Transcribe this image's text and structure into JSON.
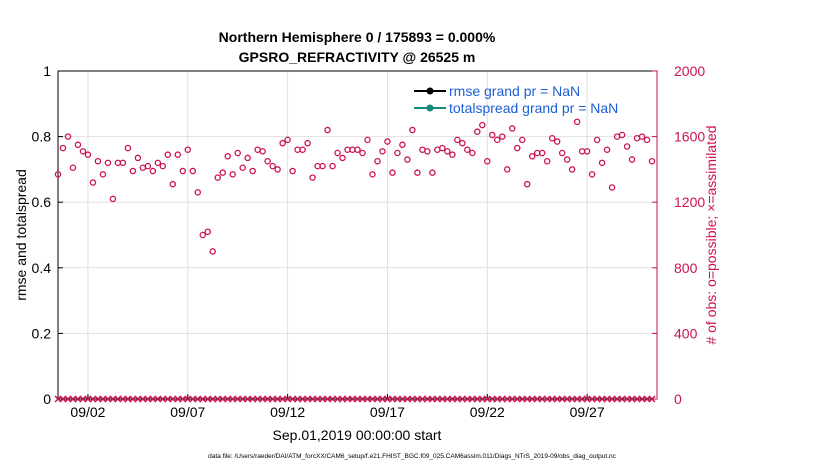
{
  "chart_data": {
    "type": "scatter",
    "title_line1": "Northern Hemisphere 0 / 175893 = 0.000%",
    "title_line2": "GPSRO_REFRACTIVITY @ 26525 m",
    "xlabel": "Sep.01,2019 00:00:00 start",
    "ylabel_left": "rmse and totalspread",
    "ylabel_right": "# of obs: o=possible; ×=assimilated",
    "footer": "data file: /Users/raeder/DAI/ATM_forcXX/CAM6_setup/f.e21.FHIST_BGC.f09_025.CAM6assim.011/Diags_NTrS_2019-09/obs_diag_output.nc",
    "x_range": [
      0.5,
      30.5
    ],
    "ylim_left": [
      0,
      1
    ],
    "ylim_right": [
      0,
      2000
    ],
    "x_tick_positions": [
      2,
      7,
      12,
      17,
      22,
      27
    ],
    "x_tick_labels": [
      "09/02",
      "09/07",
      "09/12",
      "09/17",
      "09/22",
      "09/27"
    ],
    "yleft_ticks": [
      0,
      0.2,
      0.4,
      0.6,
      0.8,
      1
    ],
    "yleft_tick_labels": [
      "0",
      "0.2",
      "0.4",
      "0.6",
      "0.8",
      "1"
    ],
    "yright_ticks": [
      0,
      400,
      800,
      1200,
      1600,
      2000
    ],
    "yright_tick_labels": [
      "0",
      "400",
      "800",
      "1200",
      "1600",
      "2000"
    ],
    "legend_position": "top-right",
    "legend": [
      {
        "label": "rmse grand pr = NaN",
        "color": "#000000",
        "text_color": "#1a5fd6"
      },
      {
        "label": "totalspread grand pr = NaN",
        "color": "#138a7a",
        "text_color": "#1a5fd6"
      }
    ],
    "colors": {
      "possible": "#cc1256",
      "assimilated": "#cc1256",
      "left_axis": "#000000",
      "right_axis": "#cc1256",
      "grid": "#e0e0e0"
    },
    "series": [
      {
        "name": "possible",
        "marker": "o",
        "axis": "right",
        "x": [
          0.5,
          0.75,
          1,
          1.25,
          1.5,
          1.75,
          2,
          2.25,
          2.5,
          2.75,
          3,
          3.25,
          3.5,
          3.75,
          4,
          4.25,
          4.5,
          4.75,
          5,
          5.25,
          5.5,
          5.75,
          6,
          6.25,
          6.5,
          6.75,
          7,
          7.25,
          7.5,
          7.75,
          8,
          8.25,
          8.5,
          8.75,
          9,
          9.25,
          9.5,
          9.75,
          10,
          10.25,
          10.5,
          10.75,
          11,
          11.25,
          11.5,
          11.75,
          12,
          12.25,
          12.5,
          12.75,
          13,
          13.25,
          13.5,
          13.75,
          14,
          14.25,
          14.5,
          14.75,
          15,
          15.25,
          15.5,
          15.75,
          16,
          16.25,
          16.5,
          16.75,
          17,
          17.25,
          17.5,
          17.75,
          18,
          18.25,
          18.5,
          18.75,
          19,
          19.25,
          19.5,
          19.75,
          20,
          20.25,
          20.5,
          20.75,
          21,
          21.25,
          21.5,
          21.75,
          22,
          22.25,
          22.5,
          22.75,
          23,
          23.25,
          23.5,
          23.75,
          24,
          24.25,
          24.5,
          24.75,
          25,
          25.25,
          25.5,
          25.75,
          26,
          26.25,
          26.5,
          26.75,
          27,
          27.25,
          27.5,
          27.75,
          28,
          28.25,
          28.5,
          28.75,
          29,
          29.25,
          29.5,
          29.75,
          30,
          30.25
        ],
        "y": [
          1370,
          1530,
          1600,
          1410,
          1550,
          1510,
          1490,
          1320,
          1450,
          1370,
          1440,
          1220,
          1440,
          1440,
          1530,
          1390,
          1470,
          1410,
          1420,
          1390,
          1440,
          1420,
          1490,
          1310,
          1490,
          1390,
          1520,
          1390,
          1260,
          1000,
          1020,
          900,
          1350,
          1380,
          1480,
          1370,
          1500,
          1410,
          1470,
          1390,
          1520,
          1510,
          1450,
          1420,
          1400,
          1560,
          1580,
          1390,
          1520,
          1520,
          1560,
          1350,
          1420,
          1420,
          1640,
          1420,
          1500,
          1470,
          1520,
          1520,
          1520,
          1500,
          1580,
          1370,
          1450,
          1510,
          1570,
          1380,
          1500,
          1550,
          1460,
          1640,
          1380,
          1520,
          1510,
          1380,
          1520,
          1530,
          1510,
          1490,
          1580,
          1560,
          1520,
          1500,
          1630,
          1670,
          1450,
          1610,
          1580,
          1600,
          1400,
          1650,
          1530,
          1580,
          1310,
          1480,
          1500,
          1500,
          1450,
          1590,
          1570,
          1500,
          1460,
          1400,
          1690,
          1510,
          1510,
          1370,
          1580,
          1440,
          1520,
          1290,
          1600,
          1610,
          1540,
          1460,
          1590,
          1600,
          1580,
          1450
        ]
      },
      {
        "name": "assimilated",
        "marker": "x",
        "axis": "right",
        "x": [
          0.5,
          0.75,
          1,
          1.25,
          1.5,
          1.75,
          2,
          2.25,
          2.5,
          2.75,
          3,
          3.25,
          3.5,
          3.75,
          4,
          4.25,
          4.5,
          4.75,
          5,
          5.25,
          5.5,
          5.75,
          6,
          6.25,
          6.5,
          6.75,
          7,
          7.25,
          7.5,
          7.75,
          8,
          8.25,
          8.5,
          8.75,
          9,
          9.25,
          9.5,
          9.75,
          10,
          10.25,
          10.5,
          10.75,
          11,
          11.25,
          11.5,
          11.75,
          12,
          12.25,
          12.5,
          12.75,
          13,
          13.25,
          13.5,
          13.75,
          14,
          14.25,
          14.5,
          14.75,
          15,
          15.25,
          15.5,
          15.75,
          16,
          16.25,
          16.5,
          16.75,
          17,
          17.25,
          17.5,
          17.75,
          18,
          18.25,
          18.5,
          18.75,
          19,
          19.25,
          19.5,
          19.75,
          20,
          20.25,
          20.5,
          20.75,
          21,
          21.25,
          21.5,
          21.75,
          22,
          22.25,
          22.5,
          22.75,
          23,
          23.25,
          23.5,
          23.75,
          24,
          24.25,
          24.5,
          24.75,
          25,
          25.25,
          25.5,
          25.75,
          26,
          26.25,
          26.5,
          26.75,
          27,
          27.25,
          27.5,
          27.75,
          28,
          28.25,
          28.5,
          28.75,
          29,
          29.25,
          29.5,
          29.75,
          30,
          30.25
        ],
        "y": [
          0,
          0,
          0,
          0,
          0,
          0,
          0,
          0,
          0,
          0,
          0,
          0,
          0,
          0,
          0,
          0,
          0,
          0,
          0,
          0,
          0,
          0,
          0,
          0,
          0,
          0,
          0,
          0,
          0,
          0,
          0,
          0,
          0,
          0,
          0,
          0,
          0,
          0,
          0,
          0,
          0,
          0,
          0,
          0,
          0,
          0,
          0,
          0,
          0,
          0,
          0,
          0,
          0,
          0,
          0,
          0,
          0,
          0,
          0,
          0,
          0,
          0,
          0,
          0,
          0,
          0,
          0,
          0,
          0,
          0,
          0,
          0,
          0,
          0,
          0,
          0,
          0,
          0,
          0,
          0,
          0,
          0,
          0,
          0,
          0,
          0,
          0,
          0,
          0,
          0,
          0,
          0,
          0,
          0,
          0,
          0,
          0,
          0,
          0,
          0,
          0,
          0,
          0,
          0,
          0,
          0,
          0,
          0,
          0,
          0,
          0,
          0,
          0,
          0,
          0,
          0,
          0,
          0,
          0,
          0
        ]
      }
    ]
  }
}
